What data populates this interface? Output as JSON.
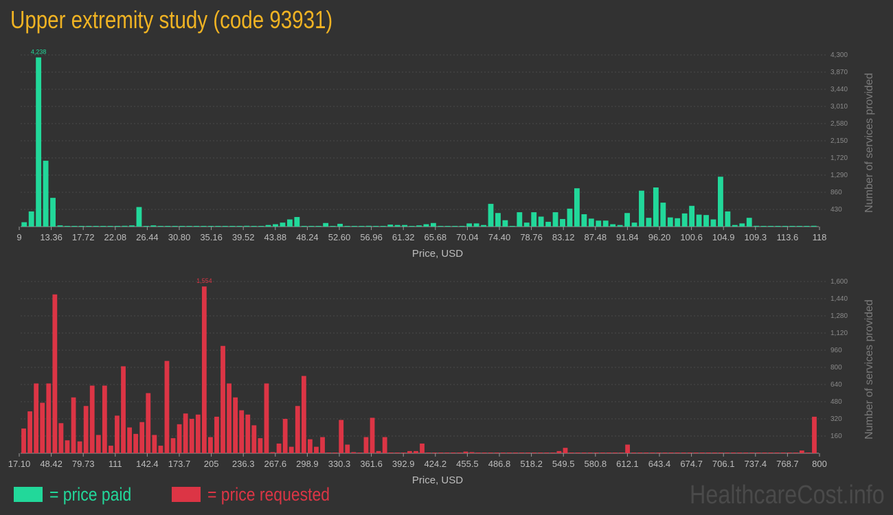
{
  "title": "Upper extremity study (code 93931)",
  "watermark": "HealthcareCost.info",
  "legend": [
    {
      "label": "= price paid",
      "color": "#22d89a"
    },
    {
      "label": "= price requested",
      "color": "#dc3545"
    }
  ],
  "chart_data": [
    {
      "type": "bar",
      "name": "price paid",
      "color": "#22d89a",
      "xlabel": "Price, USD",
      "ylabel": "Number of services provided",
      "ylim": [
        0,
        4300
      ],
      "y_ticks": [
        "430",
        "860",
        "1,290",
        "1,720",
        "2,150",
        "2,580",
        "3,010",
        "3,440",
        "3,870",
        "4,300"
      ],
      "x_ticks": [
        "9",
        "13.36",
        "17.72",
        "22.08",
        "26.44",
        "30.80",
        "35.16",
        "39.52",
        "43.88",
        "48.24",
        "52.60",
        "56.96",
        "61.32",
        "65.68",
        "70.04",
        "74.40",
        "78.76",
        "83.12",
        "87.48",
        "91.84",
        "96.20",
        "100.6",
        "104.9",
        "109.3",
        "113.6",
        "118"
      ],
      "max_label": "4,238",
      "values": [
        110,
        380,
        4238,
        1650,
        720,
        30,
        5,
        5,
        5,
        5,
        5,
        5,
        5,
        5,
        20,
        30,
        490,
        5,
        30,
        5,
        5,
        5,
        5,
        5,
        5,
        5,
        5,
        5,
        5,
        5,
        5,
        20,
        5,
        5,
        40,
        60,
        100,
        180,
        240,
        5,
        5,
        5,
        90,
        5,
        70,
        5,
        5,
        5,
        20,
        5,
        5,
        50,
        40,
        40,
        5,
        30,
        60,
        90,
        5,
        10,
        5,
        5,
        80,
        80,
        40,
        570,
        340,
        160,
        5,
        360,
        100,
        360,
        250,
        120,
        360,
        190,
        450,
        960,
        310,
        200,
        150,
        150,
        60,
        40,
        340,
        100,
        900,
        220,
        980,
        600,
        230,
        210,
        330,
        520,
        300,
        290,
        180,
        1250,
        380,
        40,
        80,
        220,
        20,
        5,
        5,
        5,
        5,
        5,
        5,
        5,
        20
      ]
    },
    {
      "type": "bar",
      "name": "price requested",
      "color": "#dc3545",
      "xlabel": "Price, USD",
      "ylabel": "Number of services provided",
      "ylim": [
        0,
        1600
      ],
      "y_ticks": [
        "160",
        "320",
        "480",
        "640",
        "800",
        "960",
        "1,120",
        "1,280",
        "1,440",
        "1,600"
      ],
      "x_ticks": [
        "17.10",
        "48.42",
        "79.73",
        "111",
        "142.4",
        "173.7",
        "205",
        "236.3",
        "267.6",
        "298.9",
        "330.3",
        "361.6",
        "392.9",
        "424.2",
        "455.5",
        "486.8",
        "518.2",
        "549.5",
        "580.8",
        "612.1",
        "643.4",
        "674.7",
        "706.1",
        "737.4",
        "768.7",
        "800"
      ],
      "max_label": "1,554",
      "values": [
        230,
        390,
        650,
        470,
        650,
        1480,
        280,
        120,
        520,
        110,
        440,
        630,
        170,
        630,
        70,
        350,
        810,
        240,
        180,
        290,
        560,
        170,
        70,
        860,
        140,
        270,
        370,
        320,
        360,
        1554,
        150,
        340,
        1000,
        650,
        520,
        400,
        360,
        260,
        140,
        650,
        10,
        90,
        320,
        60,
        440,
        720,
        130,
        60,
        150,
        5,
        5,
        310,
        80,
        10,
        5,
        150,
        330,
        20,
        150,
        5,
        5,
        5,
        20,
        20,
        90,
        5,
        5,
        5,
        5,
        5,
        5,
        15,
        10,
        5,
        5,
        5,
        5,
        5,
        5,
        5,
        5,
        5,
        5,
        5,
        5,
        5,
        20,
        50,
        5,
        5,
        5,
        5,
        5,
        5,
        5,
        5,
        5,
        80,
        5,
        5,
        5,
        5,
        5,
        5,
        5,
        5,
        5,
        5,
        5,
        5,
        5,
        5,
        5,
        5,
        5,
        5,
        5,
        5,
        5,
        5,
        5,
        5,
        5,
        5,
        5,
        25,
        5,
        340
      ]
    }
  ]
}
